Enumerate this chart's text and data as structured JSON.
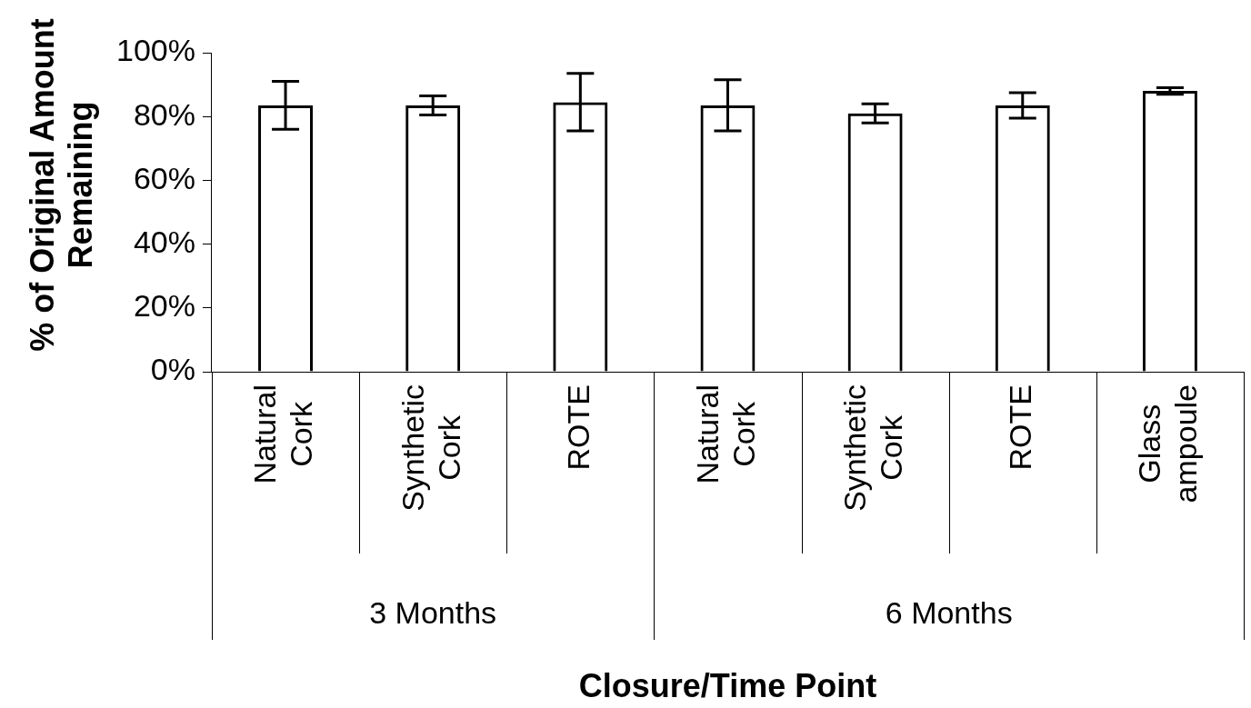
{
  "chart_data": {
    "type": "bar",
    "xlabel": "Closure/Time Point",
    "ylabel": "% of Original Amount Remaining",
    "categories": [
      "Natural Cork",
      "Synthetic Cork",
      "ROTE",
      "Natural Cork",
      "Synthetic Cork",
      "ROTE",
      "Glass ampoule"
    ],
    "values": [
      83.5,
      83.5,
      84.5,
      83.5,
      81,
      83.5,
      88
    ],
    "errors": [
      7.5,
      3,
      9,
      8,
      3,
      4,
      1
    ],
    "color": "#000000",
    "ylim": [
      0,
      100
    ],
    "yticks": [
      {
        "value": 0,
        "label": "0%"
      },
      {
        "value": 20,
        "label": "20%"
      },
      {
        "value": 40,
        "label": "40%"
      },
      {
        "value": 60,
        "label": "60%"
      },
      {
        "value": 80,
        "label": "80%"
      },
      {
        "value": 100,
        "label": "100%"
      }
    ],
    "annotations": [
      "3 Months",
      "6 Months"
    ],
    "grid": false,
    "legend": false
  }
}
